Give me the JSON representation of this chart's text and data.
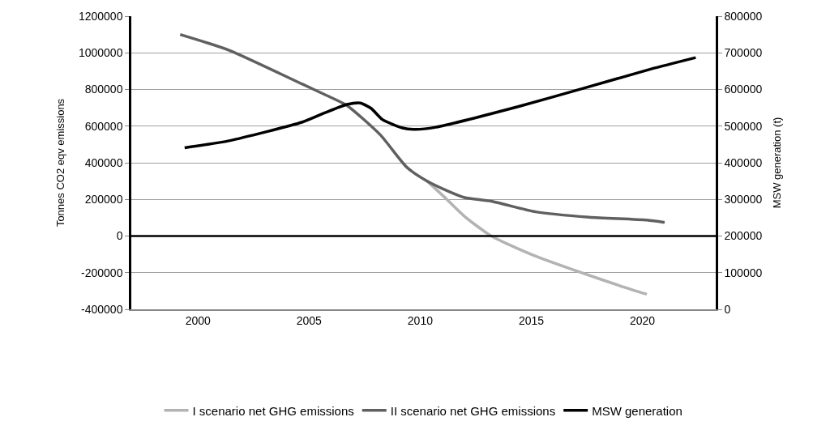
{
  "chart_data": {
    "type": "line",
    "ylabel": "Tonnes CO2 eqv emissions",
    "y2label": "MSW generation (t)",
    "xlim": [
      1997,
      2023.3
    ],
    "xticks": [
      2000,
      2005,
      2010,
      2015,
      2020
    ],
    "ylim": [
      -400000,
      1200000
    ],
    "yticks": [
      -400000,
      -200000,
      0,
      200000,
      400000,
      600000,
      800000,
      1000000,
      1200000
    ],
    "y2lim": [
      0,
      800000
    ],
    "y2ticks": [
      0,
      100000,
      200000,
      300000,
      400000,
      500000,
      600000,
      700000,
      800000
    ],
    "grid": "y",
    "legend": "bottom",
    "marker": "none",
    "line_style": "solid",
    "ref_lines": [
      {
        "axis": "y",
        "value": 0,
        "color": "#000000"
      }
    ],
    "series": [
      {
        "name": "I scenario net GHG emissions",
        "color": "#b3b3b3",
        "x": [
          2010.3,
          2011.2,
          2012.0,
          2013.2,
          2015.2,
          2017.3,
          2019.0,
          2020.2
        ],
        "values": [
          301000,
          200000,
          107000,
          0,
          -110000,
          -202000,
          -272000,
          -318000
        ]
      },
      {
        "name": "II scenario net GHG emissions",
        "color": "#606060",
        "x": [
          1999.2,
          2001.4,
          2004.7,
          2005.8,
          2006.7,
          2008.2,
          2009.4,
          2010.3,
          2011.3,
          2012.0,
          2013.2,
          2015.2,
          2017.6,
          2020.2,
          2021.0
        ],
        "values": [
          1100000,
          1014000,
          829000,
          767000,
          713000,
          553000,
          375000,
          301000,
          243000,
          210000,
          190000,
          132000,
          103000,
          87000,
          74000
        ]
      },
      {
        "name": "MSW generation",
        "color": "#000000",
        "axis": "y2",
        "x": [
          1999.4,
          2001.4,
          2004.7,
          2005.7,
          2006.7,
          2007.3,
          2007.8,
          2008.3,
          2009.2,
          2009.8,
          2010.7,
          2014.4,
          2017.4,
          2020.4,
          2022.4
        ],
        "values": [
          441000,
          460000,
          511000,
          536000,
          559000,
          563000,
          548000,
          518000,
          495000,
          491000,
          497000,
          553000,
          604000,
          656000,
          687000
        ]
      }
    ]
  }
}
